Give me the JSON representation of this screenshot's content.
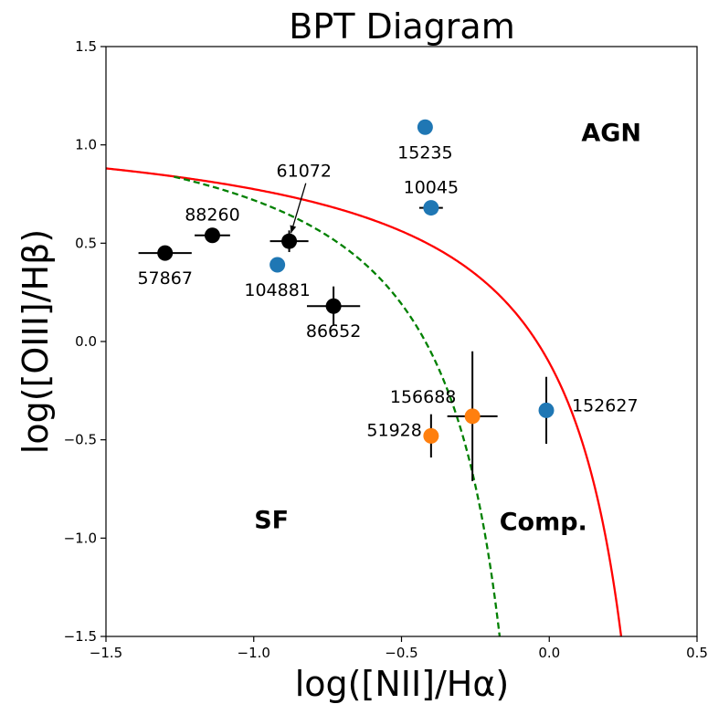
{
  "chart_data": {
    "type": "scatter",
    "title": "BPT Diagram",
    "xlabel": "log([NII]/Hα)",
    "ylabel": "log([OIII]/Hβ)",
    "xlim": [
      -1.5,
      0.5
    ],
    "ylim": [
      -1.5,
      1.5
    ],
    "x_ticks": [
      -1.5,
      -1.0,
      -0.5,
      0.0,
      0.5
    ],
    "x_tick_labels": [
      "−1.5",
      "−1.0",
      "−0.5",
      "0.0",
      "0.5"
    ],
    "y_ticks": [
      -1.5,
      -1.0,
      -0.5,
      0.0,
      0.5,
      1.0,
      1.5
    ],
    "y_tick_labels": [
      "−1.5",
      "−1.0",
      "−0.5",
      "0.0",
      "0.5",
      "1.0",
      "1.5"
    ],
    "grid": false,
    "colors": {
      "black": "#000000",
      "blue": "#1f77b4",
      "orange": "#ff7f0e",
      "kewley": "#ff0000",
      "kauffmann": "#008000"
    },
    "curves": [
      {
        "id": "kewley",
        "style": "solid",
        "color": "red",
        "formula": "0.61/(x-0.47)+1.19"
      },
      {
        "id": "kauffmann",
        "style": "dashed",
        "color": "green",
        "formula": "0.61/(x-0.05)+1.3"
      }
    ],
    "points": [
      {
        "id": "57867",
        "x": -1.3,
        "y": 0.45,
        "color": "black",
        "xerr": 0.09,
        "yerr": 0.0,
        "label": "57867",
        "label_pos": "below"
      },
      {
        "id": "88260",
        "x": -1.14,
        "y": 0.54,
        "color": "black",
        "xerr": 0.06,
        "yerr": 0.0,
        "label": "88260",
        "label_pos": "above"
      },
      {
        "id": "61072",
        "x": -0.88,
        "y": 0.51,
        "color": "black",
        "xerr": 0.065,
        "yerr": 0.055,
        "label": "61072",
        "label_pos": "arrow",
        "label_at": [
          -0.83,
          0.87
        ]
      },
      {
        "id": "104881",
        "x": -0.92,
        "y": 0.39,
        "color": "blue",
        "xerr": 0.0,
        "yerr": 0.0,
        "label": "104881",
        "label_pos": "below"
      },
      {
        "id": "86652",
        "x": -0.73,
        "y": 0.18,
        "color": "black",
        "xerr": 0.09,
        "yerr": 0.1,
        "label": "86652",
        "label_pos": "below"
      },
      {
        "id": "15235",
        "x": -0.42,
        "y": 1.09,
        "color": "blue",
        "xerr": 0.0,
        "yerr": 0.0,
        "label": "15235",
        "label_pos": "below"
      },
      {
        "id": "10045",
        "x": -0.4,
        "y": 0.68,
        "color": "blue",
        "xerr": 0.04,
        "yerr": 0.0,
        "label": "10045",
        "label_pos": "above"
      },
      {
        "id": "156688",
        "x": -0.26,
        "y": -0.38,
        "color": "orange",
        "xerr": 0.085,
        "yerr": 0.33,
        "label": "156688",
        "label_pos": "above-left"
      },
      {
        "id": "51928",
        "x": -0.4,
        "y": -0.48,
        "color": "orange",
        "xerr": 0.0,
        "yerr": 0.11,
        "label": "51928",
        "label_pos": "left"
      },
      {
        "id": "152627",
        "x": -0.01,
        "y": -0.35,
        "color": "blue",
        "xerr": 0.0,
        "yerr": 0.17,
        "label": "152627",
        "label_pos": "right"
      }
    ],
    "regions": [
      {
        "label": "AGN",
        "x": 0.21,
        "y": 1.02
      },
      {
        "label": "SF",
        "x": -0.94,
        "y": -0.95
      },
      {
        "label": "Comp.",
        "x": -0.02,
        "y": -0.96
      }
    ]
  }
}
